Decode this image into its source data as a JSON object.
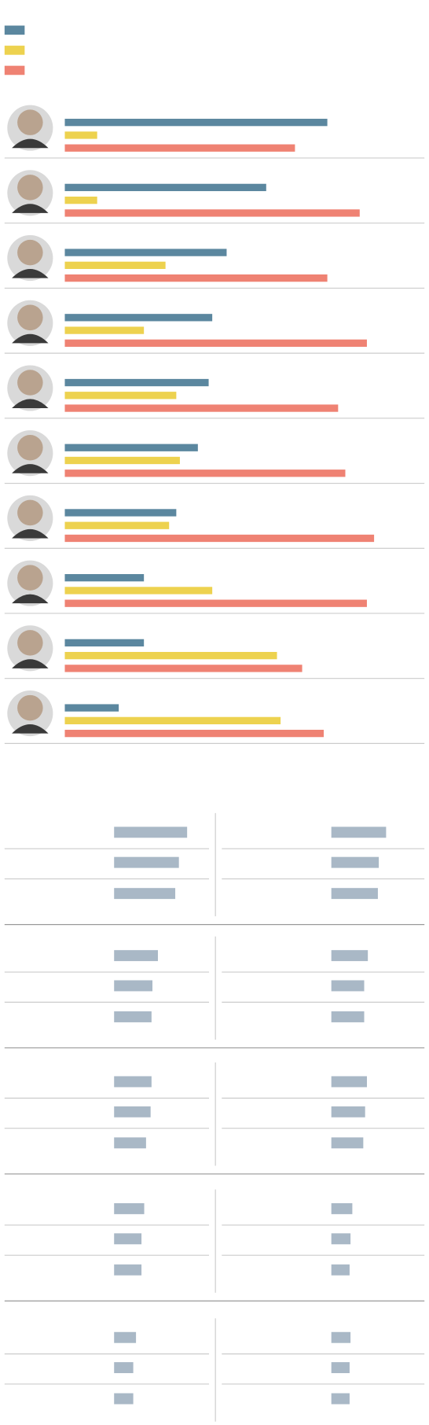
{
  "chart_data": [
    {
      "type": "bar",
      "orientation": "horizontal",
      "categories": [
        null,
        null,
        null,
        null,
        null,
        null,
        null,
        null,
        null,
        null
      ],
      "series": [
        {
          "color": "#5b879f",
          "values": [
            73,
            56,
            45,
            41,
            40,
            37,
            31,
            22,
            22,
            15
          ]
        },
        {
          "color": "#edd24f",
          "values": [
            9,
            9,
            28,
            22,
            31,
            32,
            29,
            41,
            59,
            60
          ]
        },
        {
          "color": "#ef8273",
          "values": [
            64,
            82,
            73,
            84,
            76,
            78,
            86,
            84,
            66,
            72
          ]
        }
      ],
      "xlim": [
        0,
        100
      ]
    },
    {
      "type": "bar",
      "orientation": "horizontal",
      "categories": [
        null,
        null,
        null
      ],
      "color": "#a9b8c6",
      "values": [
        80,
        71,
        67
      ],
      "xlim": [
        0,
        100
      ]
    },
    {
      "type": "bar",
      "orientation": "horizontal",
      "categories": [
        null,
        null,
        null
      ],
      "color": "#a9b8c6",
      "values": [
        60,
        52,
        51
      ],
      "xlim": [
        0,
        100
      ]
    },
    {
      "type": "bar",
      "orientation": "horizontal",
      "categories": [
        null,
        null,
        null
      ],
      "color": "#a9b8c6",
      "values": [
        48,
        42,
        41
      ],
      "xlim": [
        0,
        100
      ]
    },
    {
      "type": "bar",
      "orientation": "horizontal",
      "categories": [
        null,
        null,
        null
      ],
      "color": "#a9b8c6",
      "values": [
        40,
        36,
        36
      ],
      "xlim": [
        0,
        100
      ]
    },
    {
      "type": "bar",
      "orientation": "horizontal",
      "categories": [
        null,
        null,
        null
      ],
      "color": "#a9b8c6",
      "values": [
        41,
        40,
        35
      ],
      "xlim": [
        0,
        100
      ]
    },
    {
      "type": "bar",
      "orientation": "horizontal",
      "categories": [
        null,
        null,
        null
      ],
      "color": "#a9b8c6",
      "values": [
        39,
        37,
        35
      ],
      "xlim": [
        0,
        100
      ]
    },
    {
      "type": "bar",
      "orientation": "horizontal",
      "categories": [
        null,
        null,
        null
      ],
      "color": "#a9b8c6",
      "values": [
        33,
        30,
        30
      ],
      "xlim": [
        0,
        100
      ]
    },
    {
      "type": "bar",
      "orientation": "horizontal",
      "categories": [
        null,
        null,
        null
      ],
      "color": "#a9b8c6",
      "values": [
        23,
        21,
        20
      ],
      "xlim": [
        0,
        100
      ]
    },
    {
      "type": "bar",
      "orientation": "horizontal",
      "categories": [
        null,
        null,
        null
      ],
      "color": "#a9b8c6",
      "values": [
        24,
        21,
        21
      ],
      "xlim": [
        0,
        100
      ]
    },
    {
      "type": "bar",
      "orientation": "horizontal",
      "categories": [
        null,
        null,
        null
      ],
      "color": "#a9b8c6",
      "values": [
        21,
        20,
        20
      ],
      "xlim": [
        0,
        100
      ]
    }
  ]
}
